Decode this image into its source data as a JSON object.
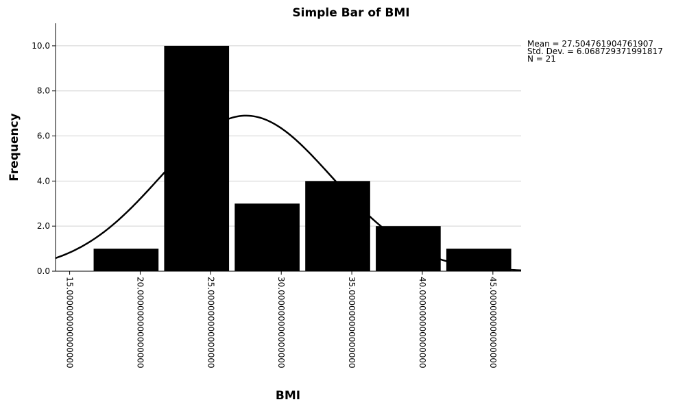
{
  "chart_data": {
    "type": "bar",
    "title": "Simple Bar of BMI",
    "xlabel": "BMI",
    "ylabel": "Frequency",
    "ylim": [
      0,
      11
    ],
    "xlim": [
      14,
      47
    ],
    "yticks": [
      "0.0",
      "2.0",
      "4.0",
      "6.0",
      "8.0",
      "10.0"
    ],
    "ytick_values": [
      0,
      2,
      4,
      6,
      8,
      10
    ],
    "xticks": [
      "15.000000000000000",
      "20.000000000000000",
      "25.000000000000000",
      "30.000000000000000",
      "35.000000000000000",
      "40.000000000000000",
      "45.000000000000000"
    ],
    "xtick_values": [
      15,
      20,
      25,
      30,
      35,
      40,
      45
    ],
    "bins": [
      {
        "start": 16.7,
        "end": 21.3,
        "value": 1
      },
      {
        "start": 21.7,
        "end": 26.3,
        "value": 10
      },
      {
        "start": 26.7,
        "end": 31.3,
        "value": 3
      },
      {
        "start": 31.7,
        "end": 36.3,
        "value": 4
      },
      {
        "start": 36.7,
        "end": 41.3,
        "value": 2
      },
      {
        "start": 41.7,
        "end": 46.3,
        "value": 1
      }
    ],
    "bar_color": "#000000",
    "grid": true,
    "normal_curve": {
      "mean": 27.504761904761907,
      "sd": 6.068729371991817,
      "n": 21,
      "bin_width": 5
    },
    "stats": [
      "Mean = 27.504761904761907",
      "Std. Dev. = 6.068729371991817",
      "N = 21"
    ]
  }
}
